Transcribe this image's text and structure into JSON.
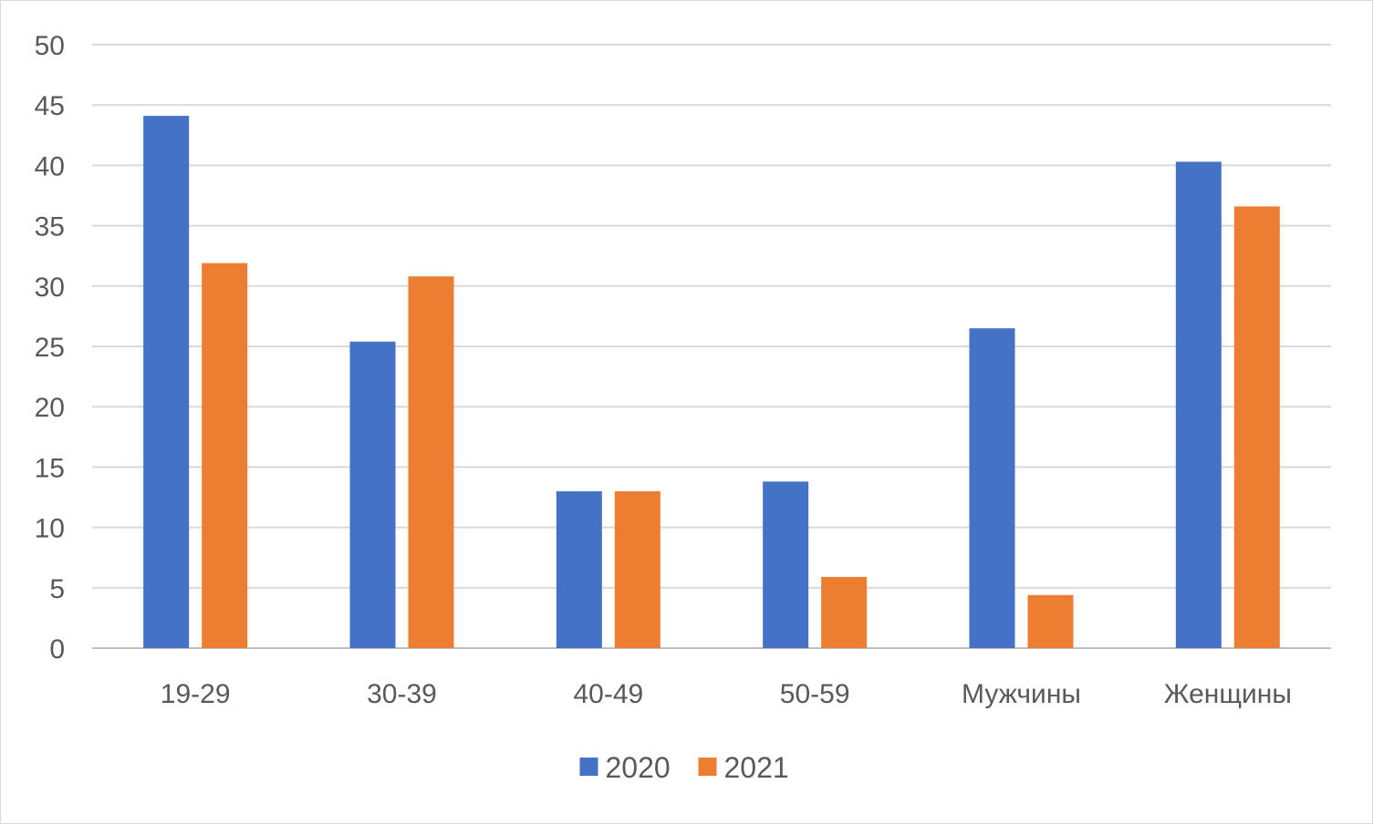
{
  "chart_data": {
    "type": "bar",
    "categories": [
      "19-29",
      "30-39",
      "40-49",
      "50-59",
      "Мужчины",
      "Женщины"
    ],
    "series": [
      {
        "name": "2020",
        "color": "#4472c4",
        "values": [
          44.1,
          25.4,
          13.0,
          13.8,
          26.5,
          40.3
        ]
      },
      {
        "name": "2021",
        "color": "#ed7d31",
        "values": [
          31.9,
          30.8,
          13.0,
          5.9,
          4.4,
          36.6
        ]
      }
    ],
    "ylim": [
      0,
      50
    ],
    "yticks": [
      0,
      5,
      10,
      15,
      20,
      25,
      30,
      35,
      40,
      45,
      50
    ],
    "grid": true,
    "legend_position": "bottom"
  }
}
